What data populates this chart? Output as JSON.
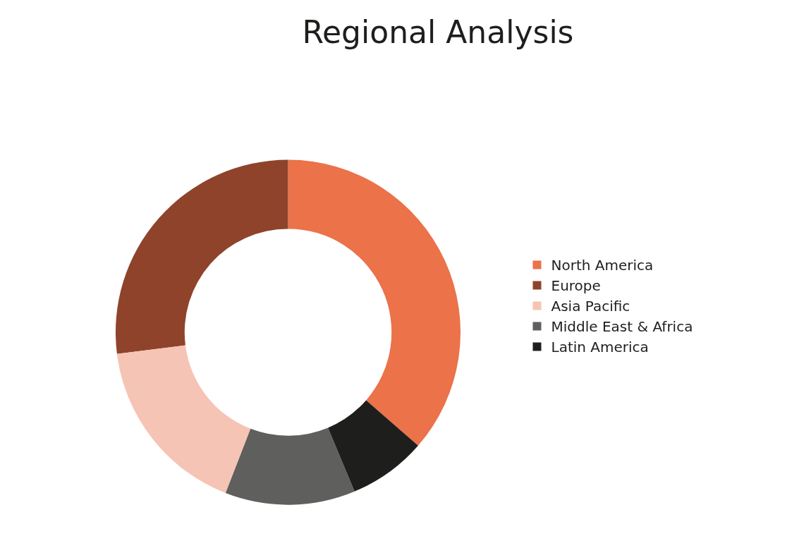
{
  "chart_data": {
    "type": "donut",
    "title": "Regional Analysis",
    "categories": [
      "North America",
      "Europe",
      "Asia Pacific",
      "Middle East & Africa",
      "Latin America"
    ],
    "values": [
      36.4,
      27.0,
      17.1,
      12.2,
      7.3
    ],
    "colors": [
      "#eb7249",
      "#8f432b",
      "#f5c4b5",
      "#5f5f5d",
      "#1e1e1c"
    ],
    "legend": "right"
  }
}
